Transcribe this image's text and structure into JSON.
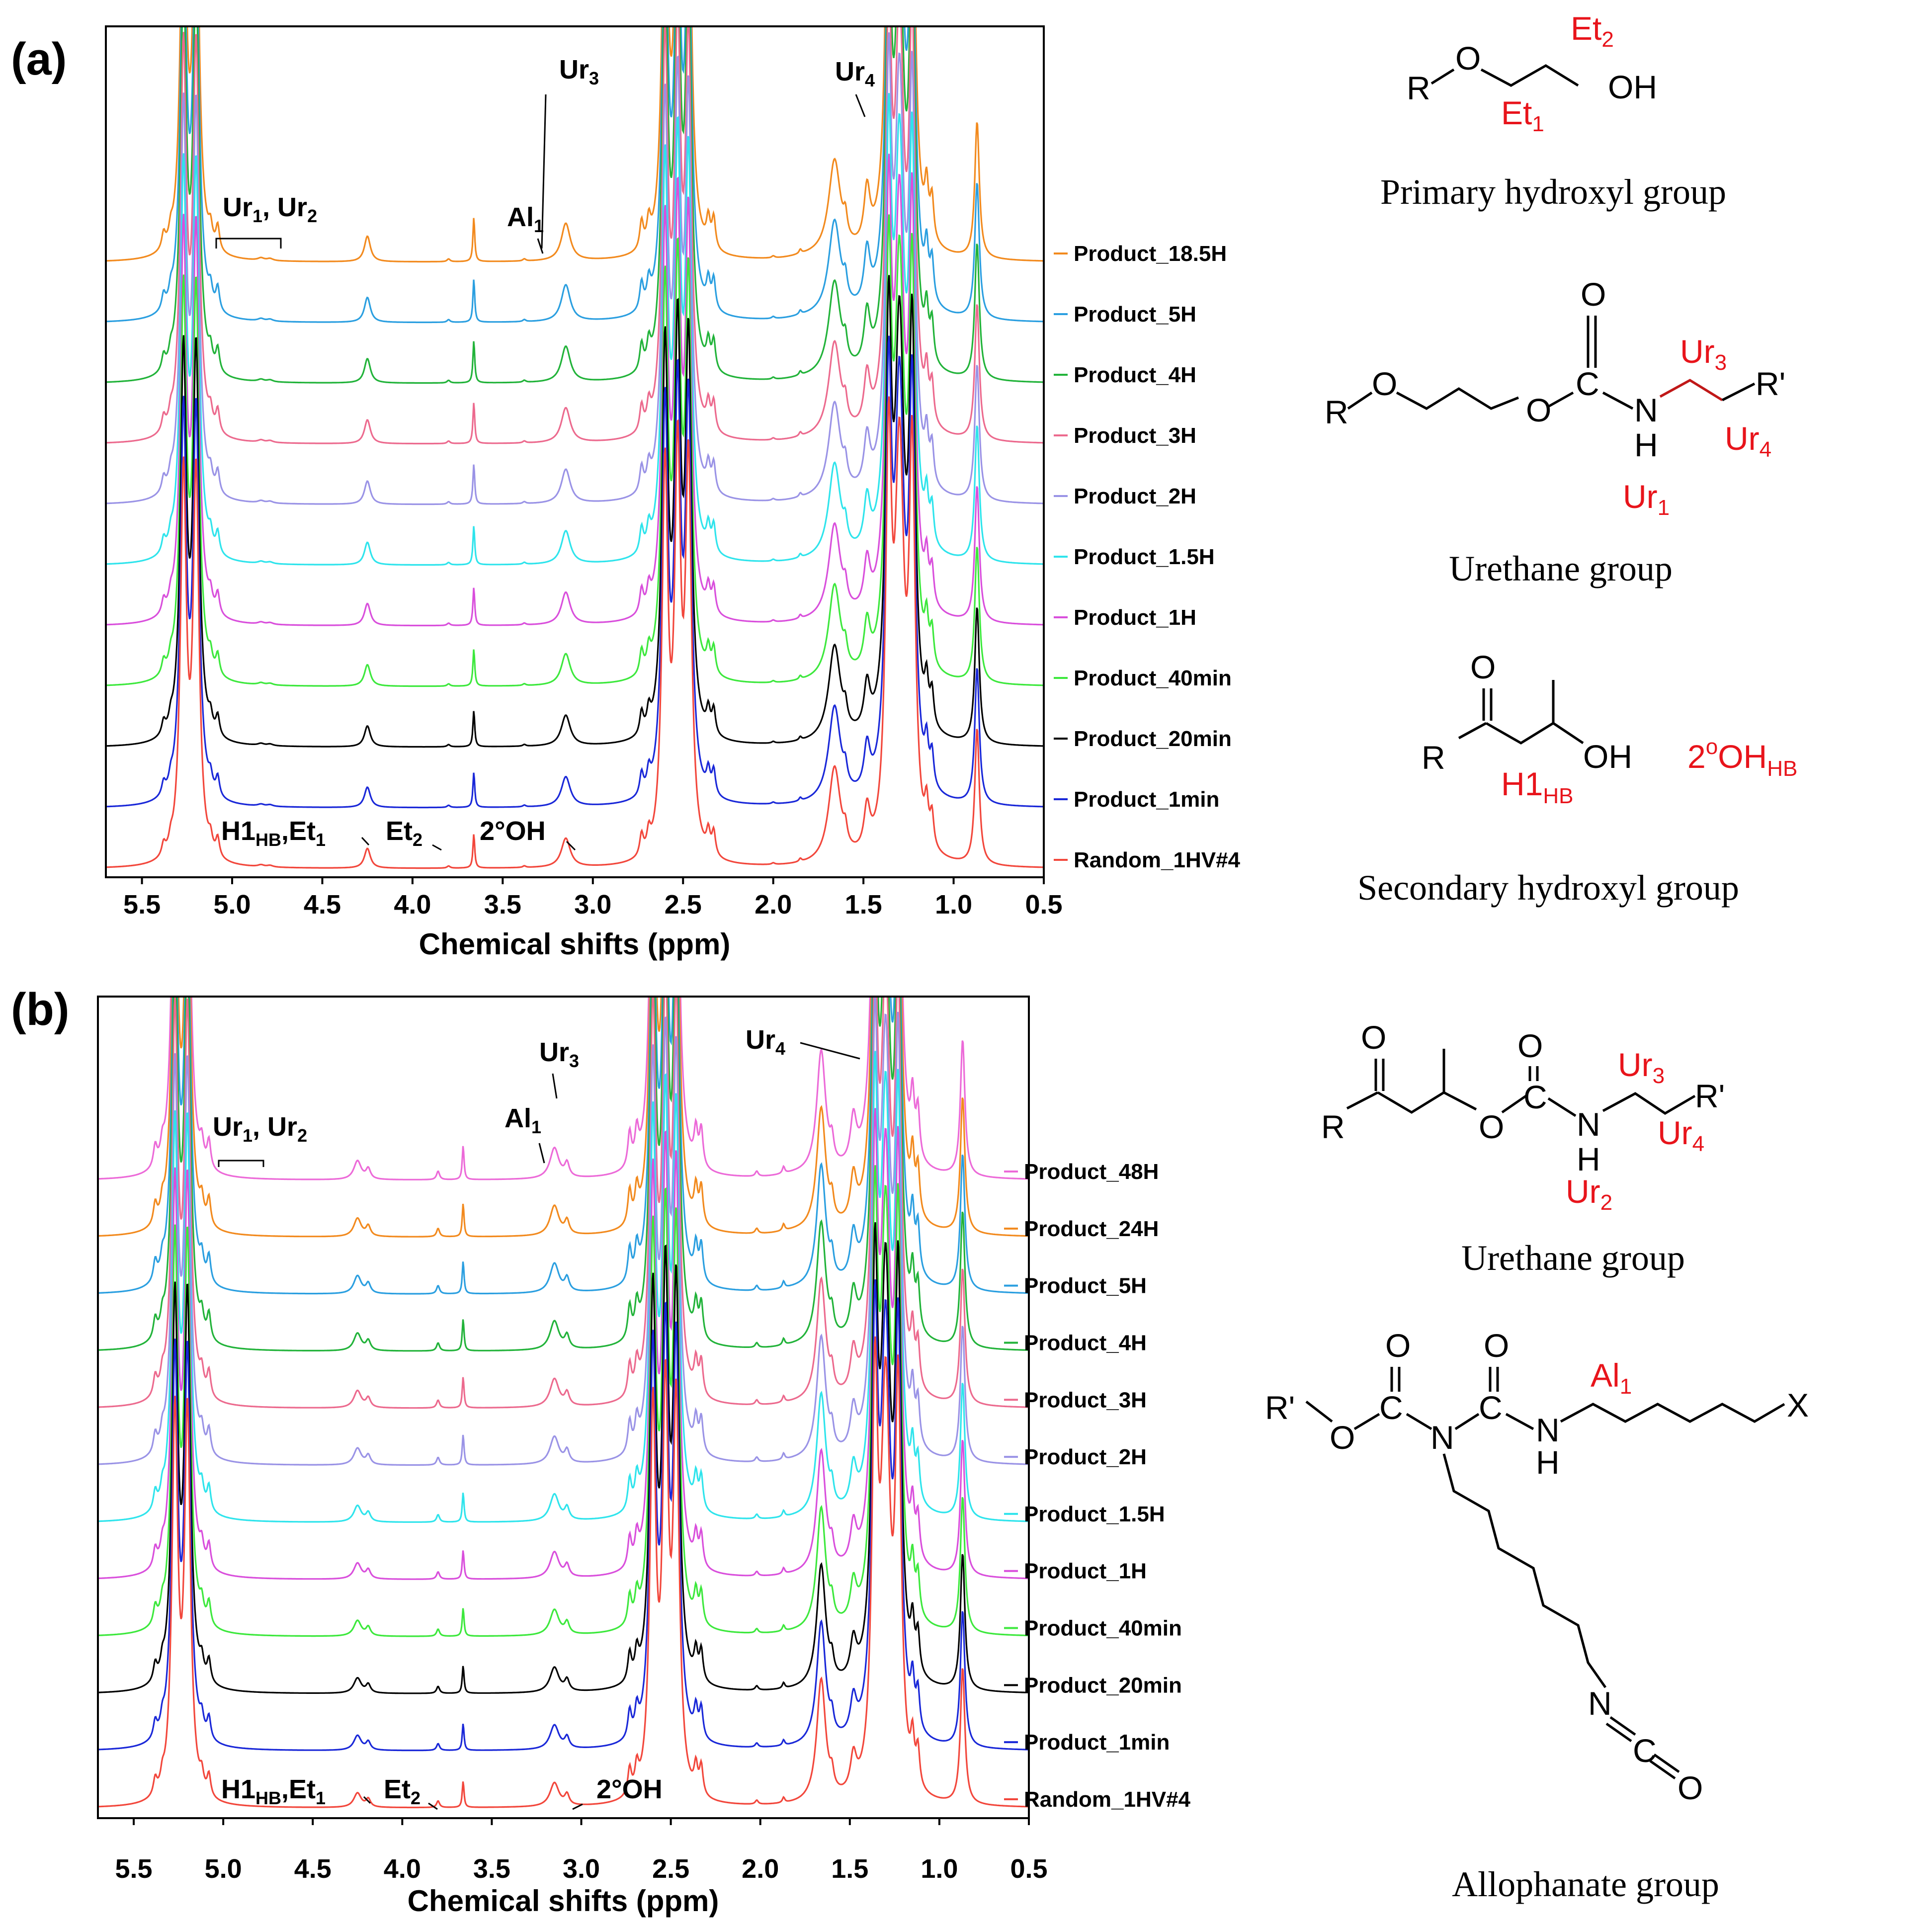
{
  "figure": {
    "panel_a_label": "(a)",
    "panel_b_label": "(b)"
  },
  "chart_data": [
    {
      "type": "line",
      "panel": "(a)",
      "title": "",
      "xlabel": "Chemical shifts (ppm)",
      "ylabel": "",
      "xlim": [
        5.7,
        0.5
      ],
      "x_reversed": true,
      "xticks": [
        "5.5",
        "5.0",
        "4.5",
        "4.0",
        "3.5",
        "3.0",
        "2.5",
        "2.0",
        "1.5",
        "1.0",
        "0.5"
      ],
      "xtick_values": [
        5.5,
        5.0,
        4.5,
        4.0,
        3.5,
        3.0,
        2.5,
        2.0,
        1.5,
        1.0,
        0.5
      ],
      "series": [
        {
          "name": "Product_18.5H",
          "color": "#f28a1e"
        },
        {
          "name": "Product_5H",
          "color": "#2b9fe0"
        },
        {
          "name": "Product_4H",
          "color": "#22b33a"
        },
        {
          "name": "Product_3H",
          "color": "#ec6a8e"
        },
        {
          "name": "Product_2H",
          "color": "#9a93e6"
        },
        {
          "name": "Product_1.5H",
          "color": "#2fe4ec"
        },
        {
          "name": "Product_1H",
          "color": "#d94fdc"
        },
        {
          "name": "Product_40min",
          "color": "#3de83d"
        },
        {
          "name": "Product_20min",
          "color": "#000000"
        },
        {
          "name": "Product_1min",
          "color": "#1a28d8"
        },
        {
          "name": "Random_1HV#4",
          "color": "#f2473c"
        }
      ],
      "peaks_ppm": [
        {
          "ppm": 5.38,
          "height": 0.45,
          "width": 0.012
        },
        {
          "ppm": 5.34,
          "height": 0.35,
          "width": 0.012
        },
        {
          "ppm": 5.27,
          "height": 14.0,
          "width": 0.02
        },
        {
          "ppm": 5.2,
          "height": 14.0,
          "width": 0.02
        },
        {
          "ppm": 5.12,
          "height": 0.5,
          "width": 0.012
        },
        {
          "ppm": 5.08,
          "height": 0.7,
          "width": 0.012
        },
        {
          "ppm": 4.84,
          "height": 0.07,
          "width": 0.02
        },
        {
          "ppm": 4.79,
          "height": 0.06,
          "width": 0.02
        },
        {
          "ppm": 4.25,
          "height": 0.75,
          "width": 0.02
        },
        {
          "ppm": 3.8,
          "height": 0.08,
          "width": 0.01
        },
        {
          "ppm": 3.66,
          "height": 1.3,
          "width": 0.006
        },
        {
          "ppm": 3.38,
          "height": 0.06,
          "width": 0.01
        },
        {
          "ppm": 3.15,
          "height": 1.1,
          "width": 0.03
        },
        {
          "ppm": 2.73,
          "height": 0.8,
          "width": 0.012
        },
        {
          "ppm": 2.69,
          "height": 0.7,
          "width": 0.012
        },
        {
          "ppm": 2.6,
          "height": 14.0,
          "width": 0.02
        },
        {
          "ppm": 2.53,
          "height": 14.0,
          "width": 0.02
        },
        {
          "ppm": 2.47,
          "height": 14.0,
          "width": 0.02
        },
        {
          "ppm": 2.36,
          "height": 0.8,
          "width": 0.012
        },
        {
          "ppm": 2.33,
          "height": 0.9,
          "width": 0.012
        },
        {
          "ppm": 2.0,
          "height": 0.06,
          "width": 0.01
        },
        {
          "ppm": 1.85,
          "height": 0.12,
          "width": 0.008
        },
        {
          "ppm": 1.66,
          "height": 3.5,
          "width": 0.04
        },
        {
          "ppm": 1.6,
          "height": 0.6,
          "width": 0.012
        },
        {
          "ppm": 1.48,
          "height": 1.6,
          "width": 0.02
        },
        {
          "ppm": 1.36,
          "height": 14.0,
          "width": 0.02
        },
        {
          "ppm": 1.3,
          "height": 14.0,
          "width": 0.03
        },
        {
          "ppm": 1.23,
          "height": 14.0,
          "width": 0.02
        },
        {
          "ppm": 1.15,
          "height": 1.4,
          "width": 0.012
        },
        {
          "ppm": 1.12,
          "height": 1.2,
          "width": 0.012
        },
        {
          "ppm": 0.87,
          "height": 5.0,
          "width": 0.015
        }
      ],
      "annotations": [
        {
          "text": "Ur",
          "sub": "3",
          "ppm": 3.15
        },
        {
          "text": "Ur",
          "sub": "4",
          "ppm": 1.48
        },
        {
          "text": "Al",
          "sub": "1",
          "ppm": 3.3
        },
        {
          "text": "Ur",
          "sub": "1",
          "text2": ", Ur",
          "sub2": "2",
          "ppm": 4.85
        },
        {
          "text": "H1",
          "sub": "HB",
          "text2": ",Et",
          "sub2": "1",
          "ppm": 4.2
        },
        {
          "text": "Et",
          "sub": "2",
          "ppm": 3.8
        },
        {
          "text": "2°OH",
          "ppm": 3.07
        }
      ]
    },
    {
      "type": "line",
      "panel": "(b)",
      "title": "",
      "xlabel": "Chemical shifts (ppm)",
      "ylabel": "",
      "xlim": [
        5.7,
        0.5
      ],
      "x_reversed": true,
      "xticks": [
        "5.5",
        "5.0",
        "4.5",
        "4.0",
        "3.5",
        "3.0",
        "2.5",
        "2.0",
        "1.5",
        "1.0",
        "0.5"
      ],
      "xtick_values": [
        5.5,
        5.0,
        4.5,
        4.0,
        3.5,
        3.0,
        2.5,
        2.0,
        1.5,
        1.0,
        0.5
      ],
      "series": [
        {
          "name": "Product_48H",
          "color": "#ec6ad8"
        },
        {
          "name": "Product_24H",
          "color": "#f28a1e"
        },
        {
          "name": "Product_5H",
          "color": "#2b9fe0"
        },
        {
          "name": "Product_4H",
          "color": "#22b33a"
        },
        {
          "name": "Product_3H",
          "color": "#ec6a8e"
        },
        {
          "name": "Product_2H",
          "color": "#9a93e6"
        },
        {
          "name": "Product_1.5H",
          "color": "#2fe4ec"
        },
        {
          "name": "Product_1H",
          "color": "#d94fdc"
        },
        {
          "name": "Product_40min",
          "color": "#3de83d"
        },
        {
          "name": "Product_20min",
          "color": "#000000"
        },
        {
          "name": "Product_1min",
          "color": "#1a28d8"
        },
        {
          "name": "Random_1HV#4",
          "color": "#f2473c"
        }
      ],
      "peaks_ppm": [
        {
          "ppm": 5.38,
          "height": 0.6,
          "width": 0.012
        },
        {
          "ppm": 5.34,
          "height": 0.45,
          "width": 0.012
        },
        {
          "ppm": 5.27,
          "height": 14.0,
          "width": 0.02
        },
        {
          "ppm": 5.2,
          "height": 14.0,
          "width": 0.02
        },
        {
          "ppm": 5.12,
          "height": 0.6,
          "width": 0.012
        },
        {
          "ppm": 5.08,
          "height": 0.8,
          "width": 0.012
        },
        {
          "ppm": 4.25,
          "height": 0.55,
          "width": 0.025
        },
        {
          "ppm": 4.19,
          "height": 0.3,
          "width": 0.015
        },
        {
          "ppm": 3.8,
          "height": 0.25,
          "width": 0.01
        },
        {
          "ppm": 3.66,
          "height": 1.0,
          "width": 0.006
        },
        {
          "ppm": 3.15,
          "height": 0.9,
          "width": 0.03
        },
        {
          "ppm": 3.08,
          "height": 0.4,
          "width": 0.015
        },
        {
          "ppm": 2.73,
          "height": 1.0,
          "width": 0.012
        },
        {
          "ppm": 2.69,
          "height": 0.9,
          "width": 0.012
        },
        {
          "ppm": 2.6,
          "height": 14.0,
          "width": 0.02
        },
        {
          "ppm": 2.53,
          "height": 14.0,
          "width": 0.02
        },
        {
          "ppm": 2.47,
          "height": 14.0,
          "width": 0.02
        },
        {
          "ppm": 2.36,
          "height": 1.0,
          "width": 0.012
        },
        {
          "ppm": 2.33,
          "height": 1.1,
          "width": 0.012
        },
        {
          "ppm": 2.02,
          "height": 0.15,
          "width": 0.01
        },
        {
          "ppm": 1.87,
          "height": 0.2,
          "width": 0.008
        },
        {
          "ppm": 1.66,
          "height": 4.5,
          "width": 0.03
        },
        {
          "ppm": 1.6,
          "height": 0.6,
          "width": 0.012
        },
        {
          "ppm": 1.48,
          "height": 1.3,
          "width": 0.02
        },
        {
          "ppm": 1.36,
          "height": 14.0,
          "width": 0.02
        },
        {
          "ppm": 1.3,
          "height": 14.0,
          "width": 0.03
        },
        {
          "ppm": 1.23,
          "height": 14.0,
          "width": 0.02
        },
        {
          "ppm": 1.15,
          "height": 1.6,
          "width": 0.012
        },
        {
          "ppm": 1.12,
          "height": 1.4,
          "width": 0.012
        },
        {
          "ppm": 0.87,
          "height": 5.0,
          "width": 0.015
        }
      ],
      "annotations": [
        {
          "text": "Ur",
          "sub": "3",
          "ppm": 3.15
        },
        {
          "text": "Ur",
          "sub": "4",
          "ppm": 1.48
        },
        {
          "text": "Al",
          "sub": "1",
          "ppm": 3.3
        },
        {
          "text": "Ur",
          "sub": "1",
          "text2": ", Ur",
          "sub2": "2",
          "ppm": 4.85
        },
        {
          "text": "H1",
          "sub": "HB",
          "text2": ",Et",
          "sub2": "1",
          "ppm": 4.2
        },
        {
          "text": "Et",
          "sub": "2",
          "ppm": 3.8
        },
        {
          "text": "2°OH",
          "ppm": 3.07
        }
      ]
    }
  ],
  "structures": {
    "primary_hydroxyl": {
      "atoms": [
        "R",
        "O",
        "OH"
      ],
      "red_labels": [
        {
          "t": "Et",
          "s": "2"
        },
        {
          "t": "Et",
          "s": "1"
        }
      ],
      "caption": "Primary hydroxyl group"
    },
    "urethane_1": {
      "atoms": [
        "R",
        "O",
        "O",
        "C",
        "O",
        "N",
        "H",
        "R'"
      ],
      "red_labels": [
        {
          "t": "Ur",
          "s": "3"
        },
        {
          "t": "Ur",
          "s": "4"
        },
        {
          "t": "Ur",
          "s": "1"
        }
      ],
      "caption": "Urethane group"
    },
    "secondary_hydroxyl": {
      "atoms": [
        "O",
        "R",
        "OH"
      ],
      "red_labels": [
        {
          "t": "H1",
          "s": "HB"
        },
        {
          "t": "2",
          "sup": "o",
          "t2": "OH",
          "s": "HB"
        }
      ],
      "caption": "Secondary hydroxyl group"
    },
    "urethane_2": {
      "atoms": [
        "O",
        "R",
        "O",
        "O",
        "C",
        "N",
        "H",
        "R'"
      ],
      "red_labels": [
        {
          "t": "Ur",
          "s": "3"
        },
        {
          "t": "Ur",
          "s": "4"
        },
        {
          "t": "Ur",
          "s": "2"
        }
      ],
      "caption": "Urethane group"
    },
    "allophanate": {
      "atoms": [
        "O",
        "O",
        "R'",
        "C",
        "C",
        "O",
        "N",
        "N",
        "H",
        "X",
        "N",
        "C",
        "O"
      ],
      "red_labels": [
        {
          "t": "Al",
          "s": "1"
        }
      ],
      "caption": "Allophanate group"
    }
  }
}
